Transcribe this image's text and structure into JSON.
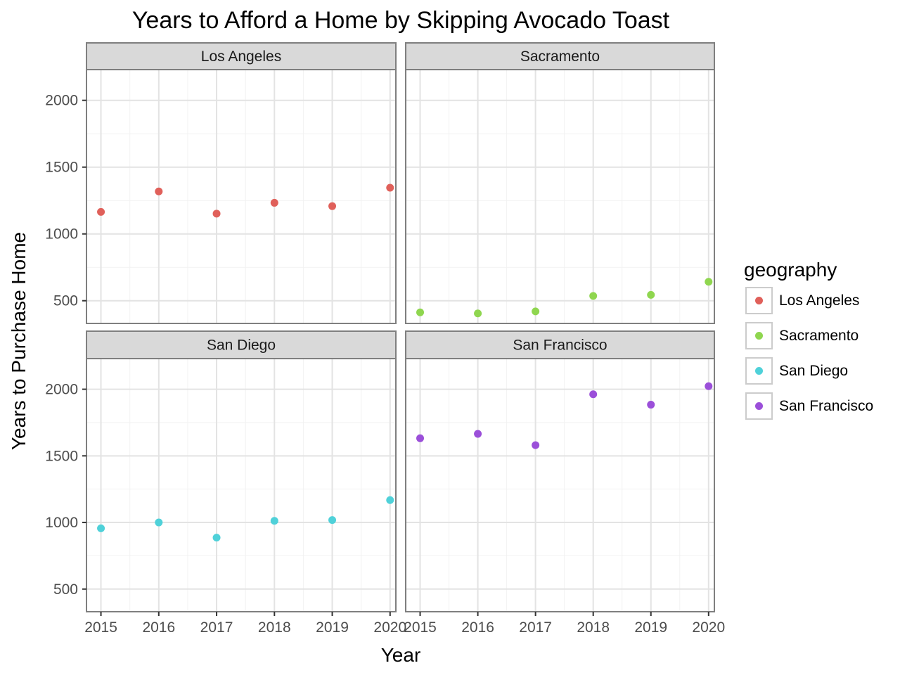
{
  "chart_data": {
    "type": "scatter",
    "title": "Years to Afford a Home by Skipping Avocado Toast",
    "xlabel": "Year",
    "ylabel": "Years to Purchase Home",
    "x_ticks": [
      "2015",
      "2016",
      "2017",
      "2018",
      "2019",
      "2020"
    ],
    "y_ticks": [
      "500",
      "1000",
      "1500",
      "2000"
    ],
    "xlim": [
      2014.75,
      2020.1
    ],
    "ylim": [
      330,
      2230
    ],
    "legend": {
      "title": "geography",
      "placement": "right"
    },
    "grid": true,
    "series": [
      {
        "name": "Los Angeles",
        "color": "#E0605A",
        "x": [
          2015,
          2016,
          2017,
          2018,
          2019,
          2020
        ],
        "y": [
          1165,
          1318,
          1152,
          1233,
          1208,
          1346
        ]
      },
      {
        "name": "Sacramento",
        "color": "#8FD64F",
        "x": [
          2015,
          2016,
          2017,
          2018,
          2019,
          2020
        ],
        "y": [
          413,
          405,
          420,
          536,
          544,
          642
        ]
      },
      {
        "name": "San Diego",
        "color": "#4FD1D9",
        "x": [
          2015,
          2016,
          2017,
          2018,
          2019,
          2020
        ],
        "y": [
          956,
          1000,
          886,
          1012,
          1018,
          1168
        ]
      },
      {
        "name": "San Francisco",
        "color": "#9B4FD9",
        "x": [
          2015,
          2016,
          2017,
          2018,
          2019,
          2020
        ],
        "y": [
          1632,
          1665,
          1580,
          1962,
          1884,
          2023
        ]
      }
    ]
  }
}
